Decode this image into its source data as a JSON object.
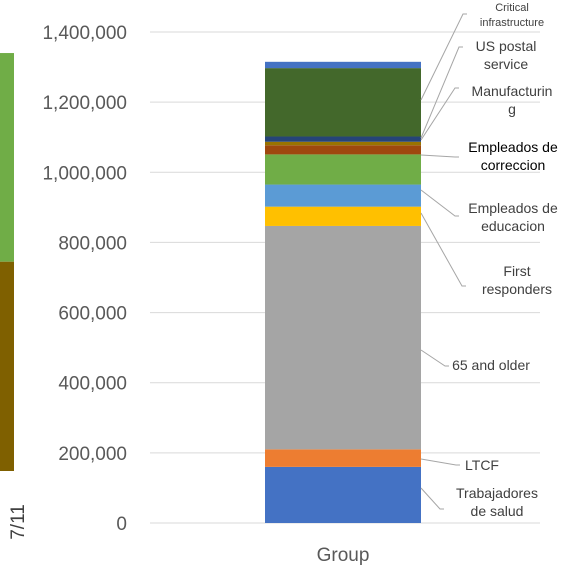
{
  "chart_data": {
    "type": "bar",
    "stacked": true,
    "categories": [
      "Group"
    ],
    "ylim": [
      0,
      1400000
    ],
    "y_ticks": [
      "0",
      "200,000",
      "400,000",
      "600,000",
      "800,000",
      "1,000,000",
      "1,200,000",
      "1,400,000"
    ],
    "grid": true,
    "series": [
      {
        "name": "Trabajadores de salud",
        "values": [
          160000
        ],
        "color": "#4472C4"
      },
      {
        "name": "LTCF",
        "values": [
          50000
        ],
        "color": "#ED7D31"
      },
      {
        "name": "65 and older",
        "values": [
          637000
        ],
        "color": "#A5A5A5"
      },
      {
        "name": "First responders",
        "values": [
          55000
        ],
        "color": "#FFC000"
      },
      {
        "name": "Empleados de educacion",
        "values": [
          63000
        ],
        "color": "#5B9BD5"
      },
      {
        "name": "Empleados de correccion",
        "values": [
          86000
        ],
        "color": "#70AD47"
      },
      {
        "name": "Manufacturing",
        "values": [
          26000
        ],
        "color": "#9E480E"
      },
      {
        "name": "US postal service",
        "values": [
          10000
        ],
        "color": "#997300"
      },
      {
        "name": "Critical infrastructure",
        "values": [
          15000
        ],
        "color": "#264478"
      },
      {
        "name": "",
        "values": [
          195000
        ],
        "color": "#43682B"
      },
      {
        "name": "",
        "values": [
          18000
        ],
        "color": "#4472C4"
      }
    ],
    "label_lines": [
      {
        "series": 0,
        "lines": [
          "Trabajadores",
          "de salud"
        ],
        "size": 14,
        "dark": false
      },
      {
        "series": 1,
        "lines": [
          "LTCF"
        ],
        "size": 14,
        "dark": false
      },
      {
        "series": 2,
        "lines": [
          "65 and older"
        ],
        "size": 14,
        "dark": false
      },
      {
        "series": 3,
        "lines": [
          "First",
          "responders"
        ],
        "size": 14,
        "dark": false
      },
      {
        "series": 4,
        "lines": [
          "Empleados de",
          "educacion"
        ],
        "size": 14,
        "dark": false
      },
      {
        "series": 5,
        "lines": [
          "Empleados de",
          "correccion"
        ],
        "size": 14,
        "dark": true
      },
      {
        "series": 6,
        "lines": [
          "Manufacturin",
          "g"
        ],
        "size": 14,
        "dark": false
      },
      {
        "series": 7,
        "lines": [
          "US postal",
          "service"
        ],
        "size": 14,
        "dark": false
      },
      {
        "series": 8,
        "lines": [
          "Critical",
          "infrastructure"
        ],
        "size": 11,
        "dark": false
      }
    ],
    "left_chart": {
      "x_tick": "7/11",
      "series": [
        {
          "top_value": 745000,
          "color": "#7F6000"
        },
        {
          "top_value": 1340000,
          "color": "#70AD47"
        }
      ]
    }
  }
}
